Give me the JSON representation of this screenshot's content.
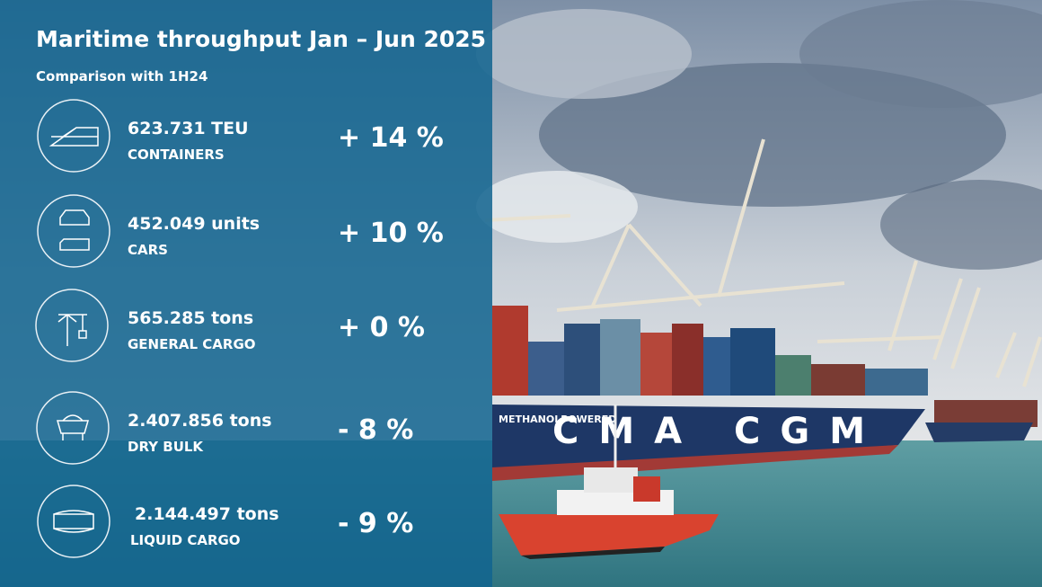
{
  "header": {
    "title": "Maritime throughput Jan – Jun 2025",
    "subtitle": "Comparison with 1H24"
  },
  "items": [
    {
      "amount": "623.731 TEU",
      "category": "CONTAINERS",
      "change": "+ 14 %"
    },
    {
      "amount": "452.049 units",
      "category": "CARS",
      "change": "+ 10 %"
    },
    {
      "amount": "565.285 tons",
      "category": "GENERAL CARGO",
      "change": "+ 0 %"
    },
    {
      "amount": "2.407.856 tons",
      "category": "DRY BULK",
      "change": "- 8 %"
    },
    {
      "amount": "2.144.497 tons",
      "category": "LIQUID CARGO",
      "change": "- 9 %"
    }
  ],
  "photo": {
    "hull_text": "CMA CGM",
    "hull_side_text": "METHANOLPOWERED"
  }
}
